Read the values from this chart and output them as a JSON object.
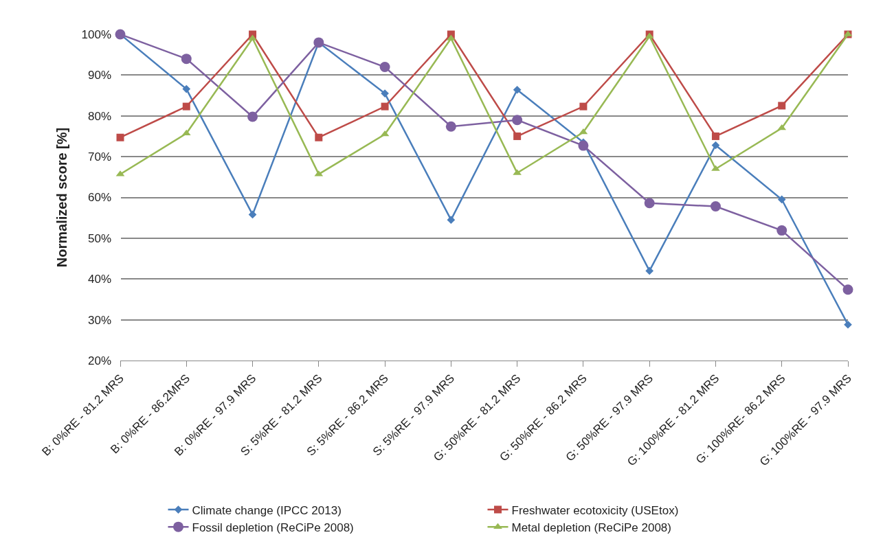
{
  "chart_data": {
    "type": "line",
    "ylabel": "Normalized score [%]",
    "categories": [
      "B: 0%RE - 81.2 MRS",
      "B: 0%RE - 86.2MRS",
      "B: 0%RE - 97.9 MRS",
      "S: 5%RE - 81.2 MRS",
      "S: 5%RE - 86.2 MRS",
      "S: 5%RE - 97.9 MRS",
      "G: 50%RE - 81.2 MRS",
      "G: 50%RE - 86.2 MRS",
      "G: 50%RE - 97.9 MRS",
      "G: 100%RE - 81.2 MRS",
      "G: 100%RE- 86.2 MRS",
      "G: 100%RE - 97.9 MRS"
    ],
    "ylim": [
      20,
      100
    ],
    "yticks": [
      {
        "value": 20,
        "label": "20%"
      },
      {
        "value": 30,
        "label": "30%"
      },
      {
        "value": 40,
        "label": "40%"
      },
      {
        "value": 50,
        "label": "50%"
      },
      {
        "value": 60,
        "label": "60%"
      },
      {
        "value": 70,
        "label": "70%"
      },
      {
        "value": 80,
        "label": "80%"
      },
      {
        "value": 90,
        "label": "90%"
      },
      {
        "value": 100,
        "label": "100%"
      }
    ],
    "grid": "y",
    "legend": "bottom",
    "series": [
      {
        "name": "Climate change (IPCC 2013)",
        "color": "#4a7ebb",
        "marker": "diamond",
        "values": [
          100,
          86.6,
          55.8,
          98,
          85.5,
          54.5,
          86.4,
          73.5,
          42,
          72.8,
          59.5,
          28.8
        ]
      },
      {
        "name": "Freshwater ecotoxicity (USEtox)",
        "color": "#be4b48",
        "marker": "square",
        "values": [
          74.7,
          82.3,
          100,
          74.7,
          82.3,
          100,
          75,
          82.3,
          100,
          75,
          82.5,
          100
        ]
      },
      {
        "name": "Fossil depletion (ReCiPe 2008)",
        "color": "#7d60a0",
        "marker": "circle",
        "values": [
          100,
          94,
          79.8,
          98,
          92,
          77.4,
          79,
          72.7,
          58.6,
          57.8,
          51.9,
          37.4
        ]
      },
      {
        "name": "Metal depletion (ReCiPe 2008)",
        "color": "#98b954",
        "marker": "triangle",
        "values": [
          65.7,
          75.7,
          99,
          65.7,
          75.5,
          99,
          66,
          76,
          99.5,
          67,
          77,
          100
        ]
      }
    ]
  }
}
